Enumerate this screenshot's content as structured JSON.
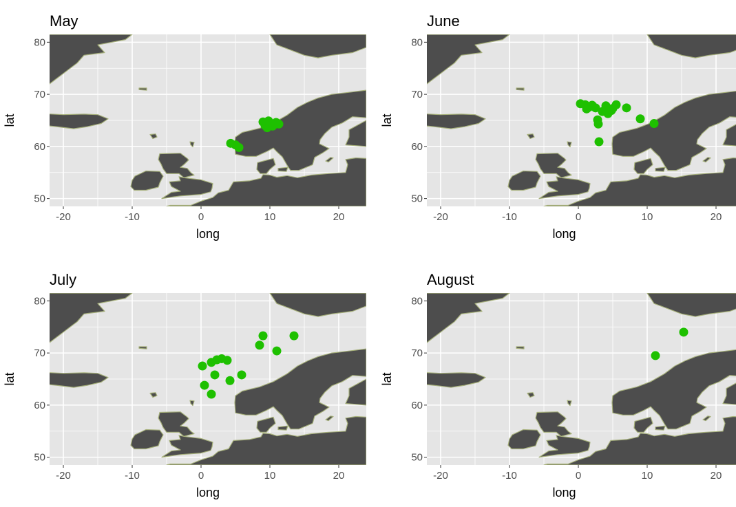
{
  "figure": {
    "colors": {
      "panel_background": "#e5e5e5",
      "grid": "#ffffff",
      "land": "#4d4d4d",
      "land_border": "#a6b07a",
      "points": "#1ec000",
      "tick": "#333333"
    }
  },
  "chart_data": [
    {
      "type": "scatter",
      "title": "May",
      "xlabel": "long",
      "ylabel": "lat",
      "xlim": [
        -22,
        24
      ],
      "ylim": [
        48.5,
        81.5
      ],
      "xticks": [
        -20,
        -10,
        0,
        10,
        20
      ],
      "yticks": [
        50,
        60,
        70,
        80
      ],
      "grid": true,
      "points": [
        {
          "x": 4.3,
          "y": 60.6
        },
        {
          "x": 5.0,
          "y": 60.3
        },
        {
          "x": 5.5,
          "y": 59.8
        },
        {
          "x": 9.0,
          "y": 64.7
        },
        {
          "x": 9.3,
          "y": 64.0
        },
        {
          "x": 9.6,
          "y": 63.6
        },
        {
          "x": 10.0,
          "y": 64.4
        },
        {
          "x": 10.4,
          "y": 63.9
        },
        {
          "x": 10.9,
          "y": 64.6
        },
        {
          "x": 11.3,
          "y": 64.3
        },
        {
          "x": 9.8,
          "y": 64.9
        }
      ]
    },
    {
      "type": "scatter",
      "title": "June",
      "xlabel": "long",
      "ylabel": "lat",
      "xlim": [
        -22,
        24
      ],
      "ylim": [
        48.5,
        81.5
      ],
      "xticks": [
        -20,
        -10,
        0,
        10,
        20
      ],
      "yticks": [
        50,
        60,
        70,
        80
      ],
      "grid": true,
      "points": [
        {
          "x": 0.3,
          "y": 68.2
        },
        {
          "x": 1.0,
          "y": 68.0
        },
        {
          "x": 1.5,
          "y": 67.5
        },
        {
          "x": 2.0,
          "y": 67.9
        },
        {
          "x": 1.2,
          "y": 67.2
        },
        {
          "x": 2.5,
          "y": 67.4
        },
        {
          "x": 3.5,
          "y": 66.7
        },
        {
          "x": 4.0,
          "y": 67.8
        },
        {
          "x": 4.3,
          "y": 66.3
        },
        {
          "x": 5.0,
          "y": 67.3
        },
        {
          "x": 5.5,
          "y": 68.0
        },
        {
          "x": 4.8,
          "y": 66.9
        },
        {
          "x": 7.0,
          "y": 67.4
        },
        {
          "x": 2.8,
          "y": 65.1
        },
        {
          "x": 2.9,
          "y": 64.3
        },
        {
          "x": 9.0,
          "y": 65.3
        },
        {
          "x": 11.0,
          "y": 64.4
        },
        {
          "x": 3.0,
          "y": 60.9
        }
      ]
    },
    {
      "type": "scatter",
      "title": "July",
      "xlabel": "long",
      "ylabel": "lat",
      "xlim": [
        -22,
        24
      ],
      "ylim": [
        48.5,
        81.5
      ],
      "xticks": [
        -20,
        -10,
        0,
        10,
        20
      ],
      "yticks": [
        50,
        60,
        70,
        80
      ],
      "grid": true,
      "points": [
        {
          "x": 0.2,
          "y": 67.5
        },
        {
          "x": 1.5,
          "y": 68.2
        },
        {
          "x": 2.3,
          "y": 68.7
        },
        {
          "x": 3.0,
          "y": 68.9
        },
        {
          "x": 3.8,
          "y": 68.6
        },
        {
          "x": 2.0,
          "y": 65.8
        },
        {
          "x": 0.5,
          "y": 63.8
        },
        {
          "x": 1.5,
          "y": 62.1
        },
        {
          "x": 4.2,
          "y": 64.7
        },
        {
          "x": 5.9,
          "y": 65.8
        },
        {
          "x": 8.5,
          "y": 71.5
        },
        {
          "x": 9.0,
          "y": 73.3
        },
        {
          "x": 11.0,
          "y": 70.4
        },
        {
          "x": 13.5,
          "y": 73.3
        }
      ]
    },
    {
      "type": "scatter",
      "title": "August",
      "xlabel": "long",
      "ylabel": "lat",
      "xlim": [
        -22,
        24
      ],
      "ylim": [
        48.5,
        81.5
      ],
      "xticks": [
        -20,
        -10,
        0,
        10,
        20
      ],
      "yticks": [
        50,
        60,
        70,
        80
      ],
      "grid": true,
      "points": [
        {
          "x": 11.2,
          "y": 69.5
        },
        {
          "x": 15.3,
          "y": 74.0
        }
      ]
    }
  ]
}
